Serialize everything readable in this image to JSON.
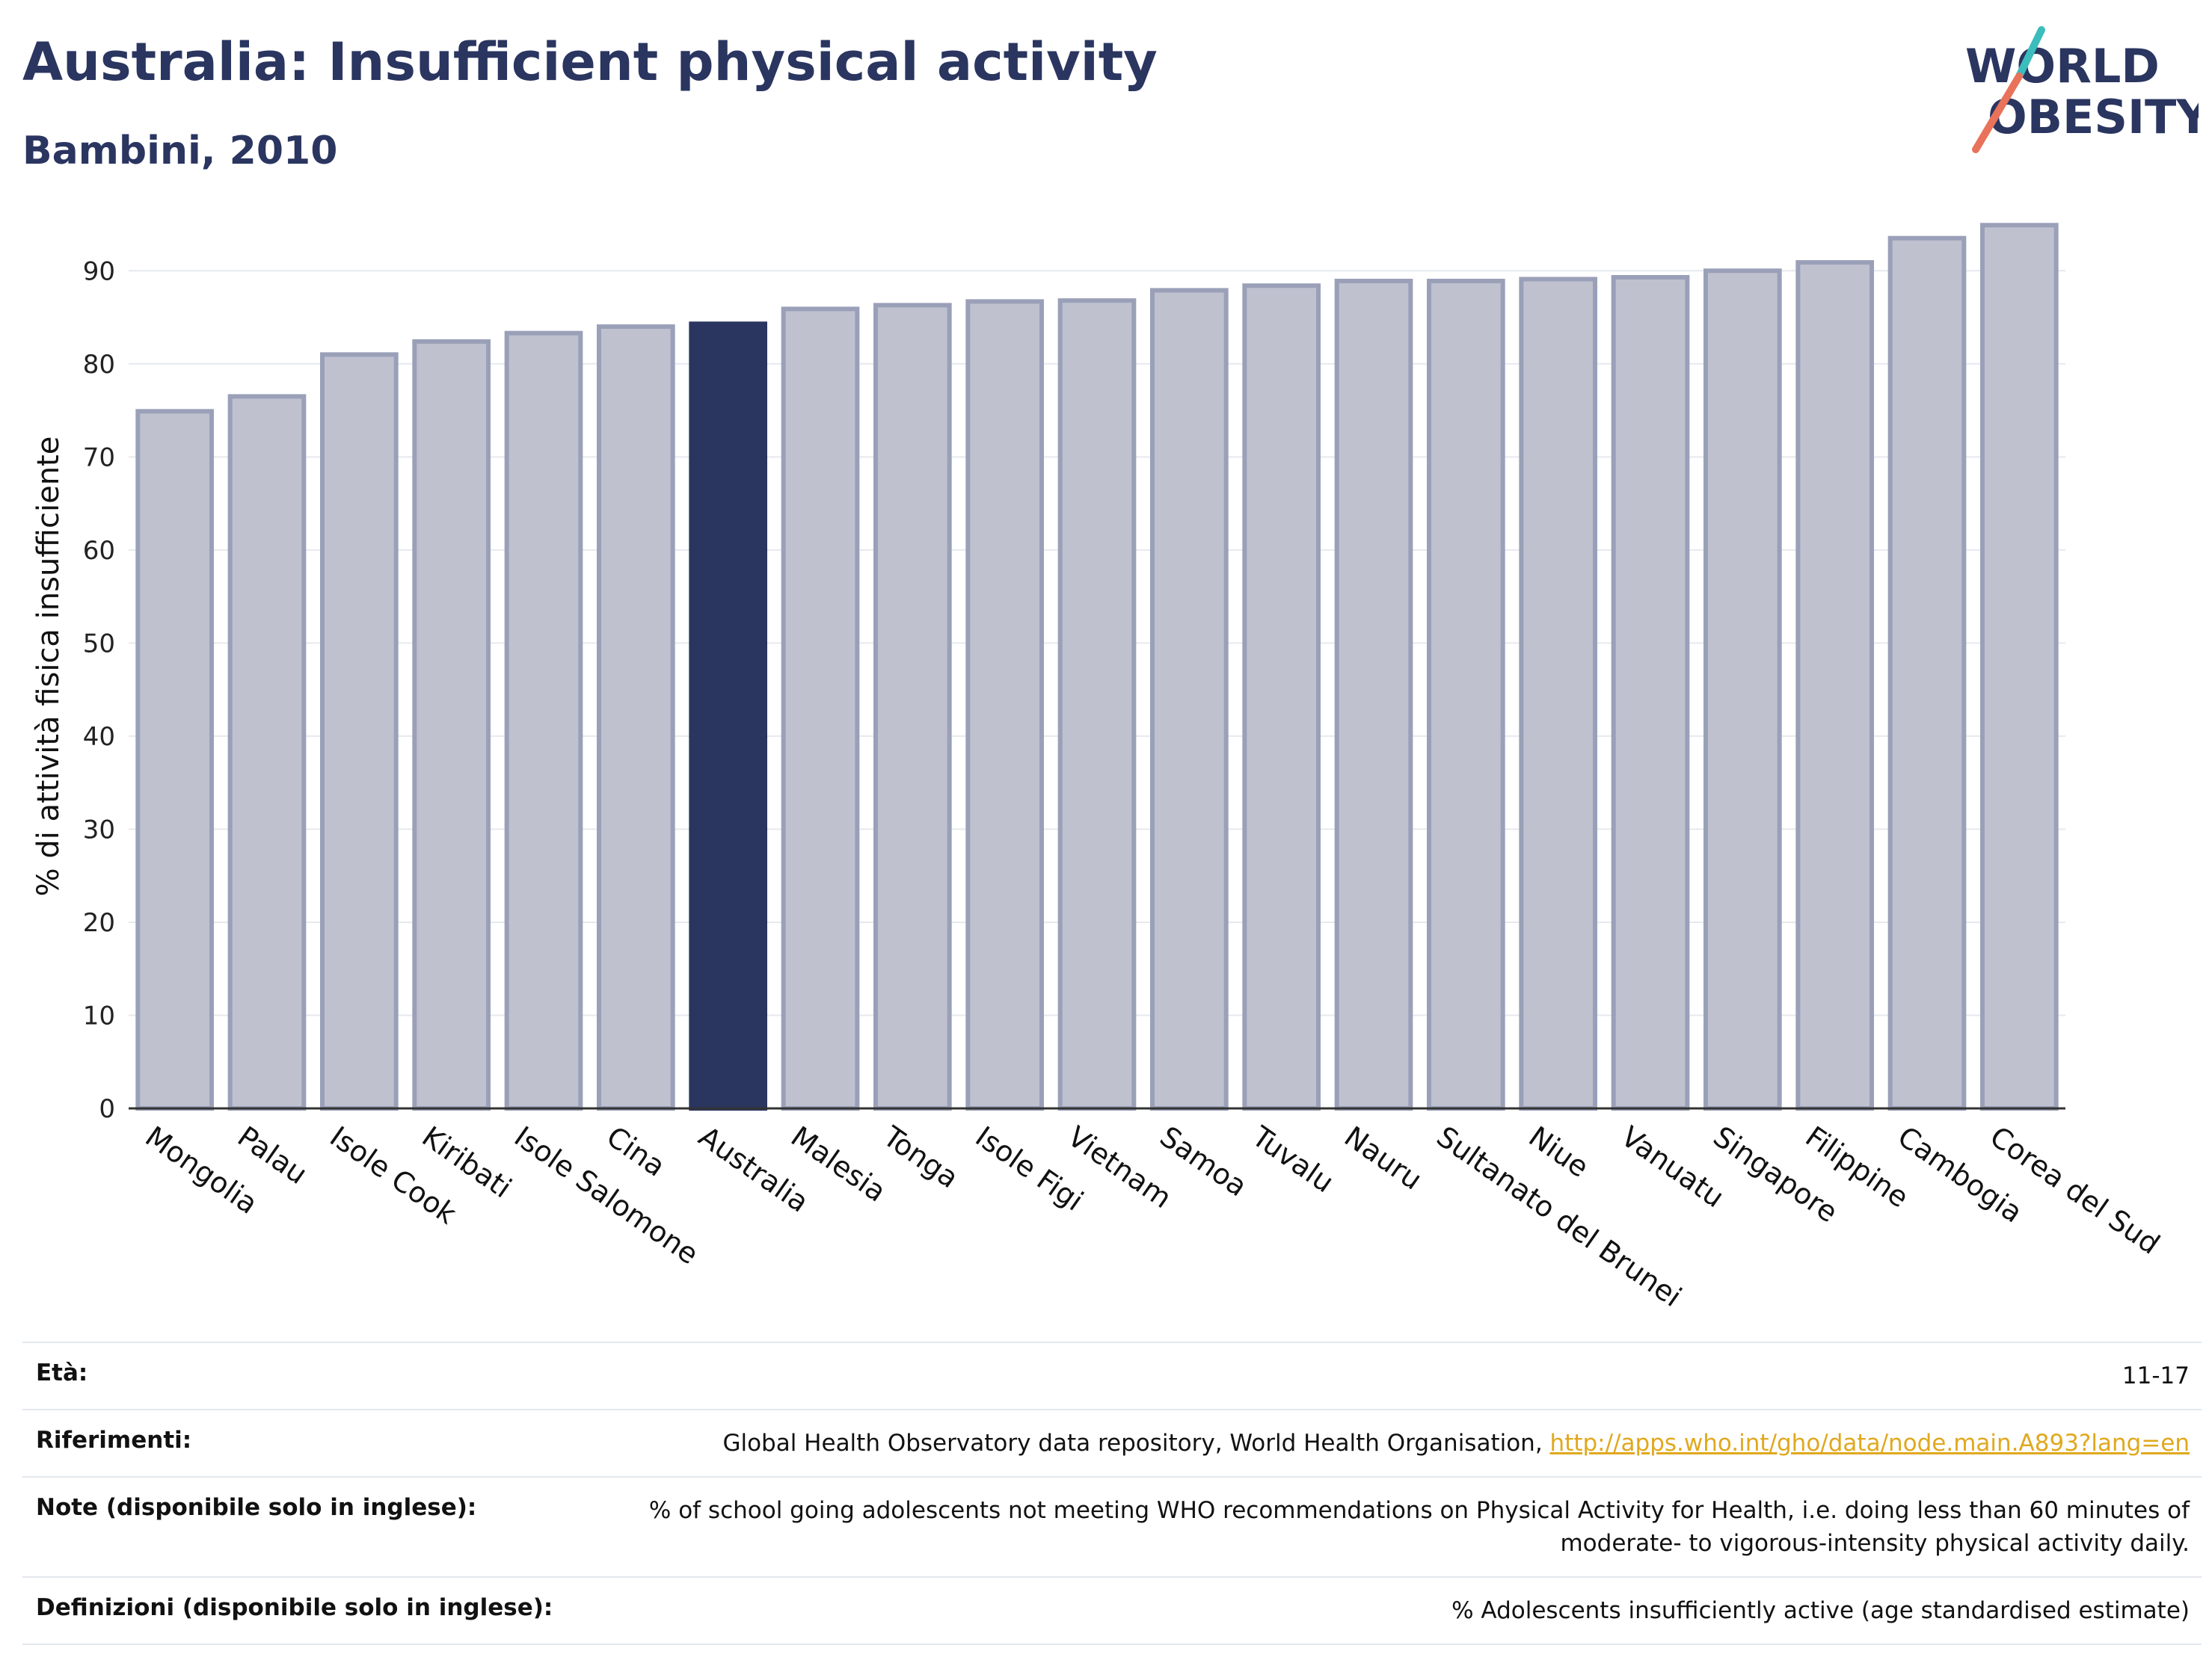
{
  "header": {
    "title": "Australia: Insufficient physical activity",
    "subtitle": "Bambini, 2010"
  },
  "logo": {
    "line1": "WORLD",
    "line2": "OBESITY"
  },
  "chart_data": {
    "type": "bar",
    "ylabel": "% di attività fisica insufficiente",
    "xlabel": "",
    "ylim": [
      0,
      95
    ],
    "yticks": [
      0,
      10,
      20,
      30,
      40,
      50,
      60,
      70,
      80,
      90
    ],
    "grid": true,
    "highlight": "Australia",
    "categories": [
      "Mongolia",
      "Palau",
      "Isole Cook",
      "Kiribati",
      "Isole Salomone",
      "Cina",
      "Australia",
      "Malesia",
      "Tonga",
      "Isole Figi",
      "Vietnam",
      "Samoa",
      "Tuvalu",
      "Nauru",
      "Sultanato del Brunei",
      "Niue",
      "Vanuatu",
      "Singapore",
      "Filippine",
      "Cambogia",
      "Corea del Sud"
    ],
    "values": [
      74.9,
      76.5,
      81.0,
      82.4,
      83.3,
      84.0,
      84.3,
      85.9,
      86.3,
      86.7,
      86.8,
      87.9,
      88.4,
      88.9,
      88.9,
      89.1,
      89.3,
      90.0,
      90.9,
      93.5,
      94.9
    ],
    "colors": {
      "bar": "#bfc1cf",
      "bar_edge": "#9aa0b8",
      "highlight": "#2a3560"
    }
  },
  "meta": [
    {
      "label": "Età:",
      "value": "11-17"
    },
    {
      "label": "Riferimenti:",
      "value": "Global Health Observatory data repository, World Health Organisation, ",
      "link": "http://apps.who.int/gho/data/node.main.A893?lang=en"
    },
    {
      "label": "Note (disponibile solo in inglese):",
      "value": "% of school going adolescents not meeting WHO recommendations on Physical Activity for Health, i.e. doing less than 60 minutes of moderate- to vigorous-intensity physical activity daily."
    },
    {
      "label": "Definizioni (disponibile solo in inglese):",
      "value": "% Adolescents insufficiently active (age standardised estimate)"
    }
  ]
}
